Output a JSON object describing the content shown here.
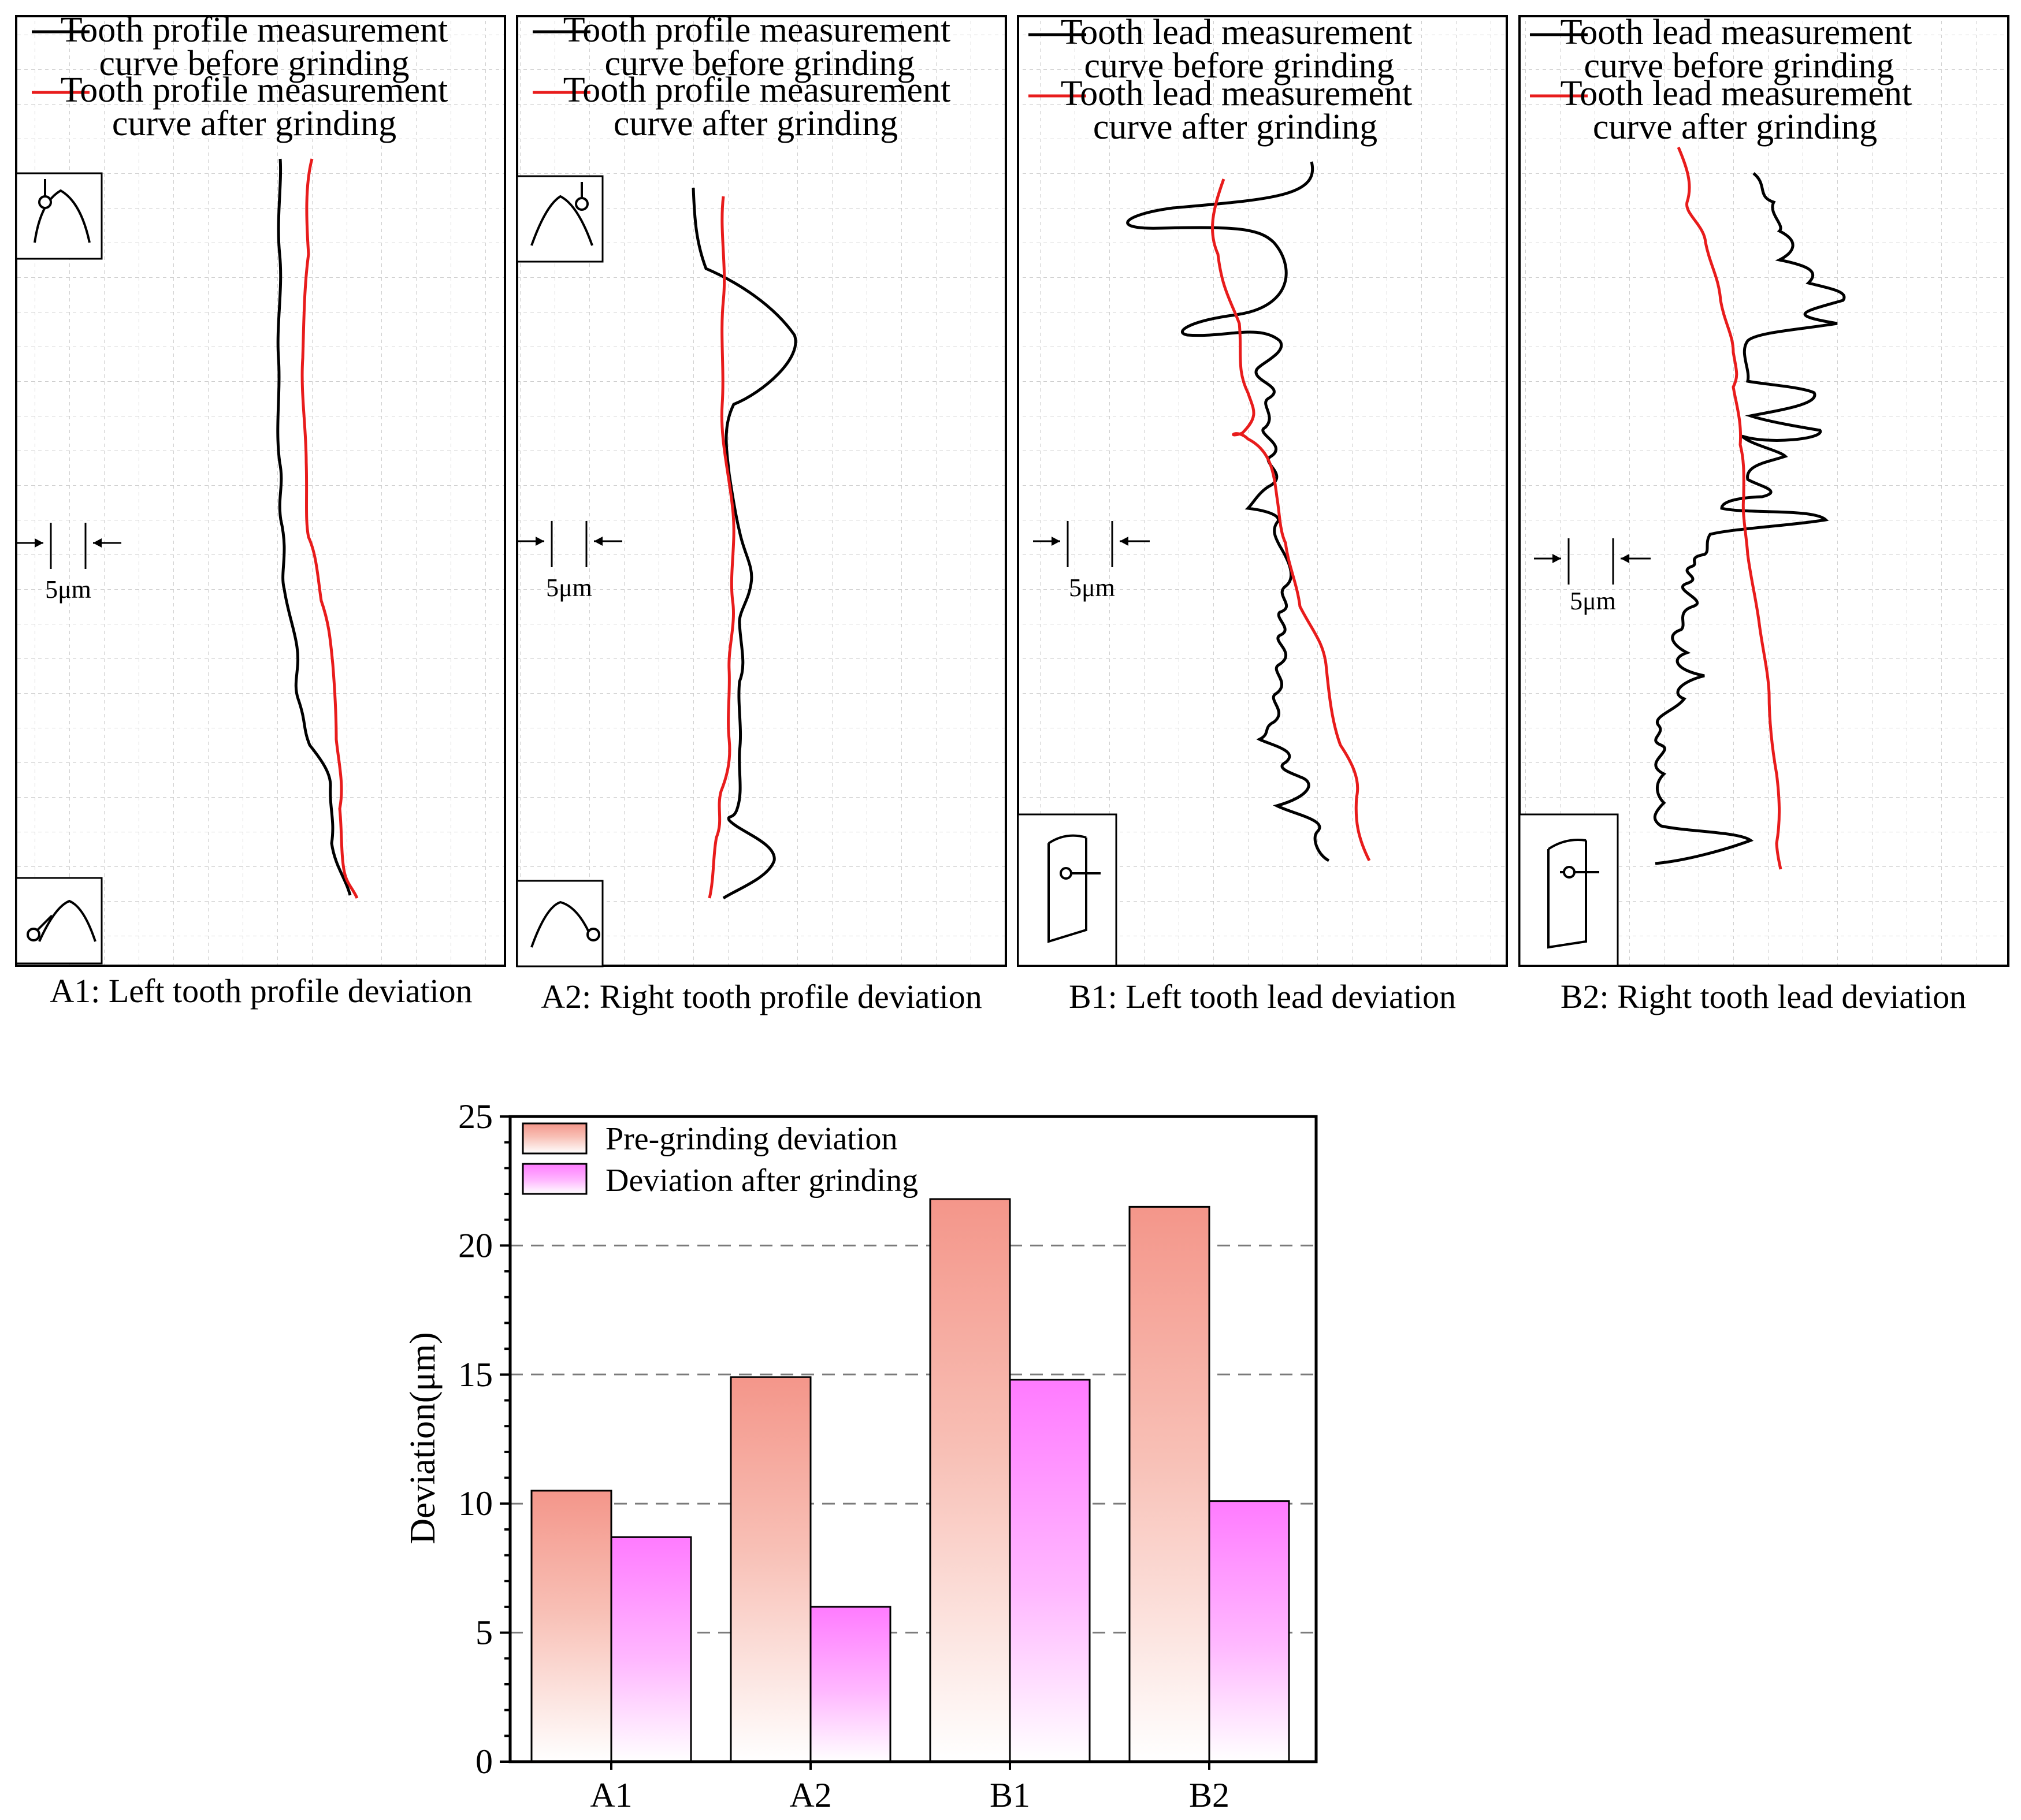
{
  "colors": {
    "before": "#000000",
    "after": "#e81c1c",
    "pre_bar_top": "#f4968a",
    "post_bar_top": "#ff77ff",
    "grid": "#c8c8c8"
  },
  "panels": [
    {
      "id": "A1",
      "caption": "A1: Left tooth profile deviation",
      "legend_before": [
        "Tooth profile measurement",
        "curve before grinding"
      ],
      "legend_after": [
        "Tooth profile measurement",
        "curve after grinding"
      ],
      "scale_label": "5μm",
      "icon_top": "tooth-tip-probe-icon",
      "icon_bottom": "tooth-root-probe-icon"
    },
    {
      "id": "A2",
      "caption": "A2: Right tooth profile deviation",
      "legend_before": [
        "Tooth profile measurement",
        "curve before grinding"
      ],
      "legend_after": [
        "Tooth profile measurement",
        "curve after grinding"
      ],
      "scale_label": "5μm",
      "icon_top": "tooth-tip-probe-icon",
      "icon_bottom": "tooth-root-probe-icon"
    },
    {
      "id": "B1",
      "caption": "B1: Left tooth lead deviation",
      "legend_before": [
        "Tooth lead measurement",
        "curve before grinding"
      ],
      "legend_after": [
        "Tooth lead measurement",
        "curve after grinding"
      ],
      "scale_label": "5μm",
      "icon_bottom": "tooth-flank-probe-icon"
    },
    {
      "id": "B2",
      "caption": "B2: Right tooth lead deviation",
      "legend_before": [
        "Tooth lead measurement",
        "curve before grinding"
      ],
      "legend_after": [
        "Tooth lead measurement",
        "curve after grinding"
      ],
      "scale_label": "5μm",
      "icon_bottom": "tooth-flank-probe-icon"
    }
  ],
  "chart_data": {
    "type": "bar",
    "categories": [
      "A1",
      "A2",
      "B1",
      "B2"
    ],
    "series": [
      {
        "name": "Pre-grinding deviation",
        "values": [
          10.5,
          14.9,
          21.8,
          21.5
        ]
      },
      {
        "name": "Deviation after grinding",
        "values": [
          8.7,
          6.0,
          14.8,
          10.1
        ]
      }
    ],
    "title": "",
    "xlabel": "",
    "ylabel": "Deviation(μm)",
    "ylim": [
      0,
      25
    ],
    "yticks": [
      0,
      5,
      10,
      15,
      20,
      25
    ],
    "grid": "dashed horizontal",
    "legend": "top-left"
  }
}
